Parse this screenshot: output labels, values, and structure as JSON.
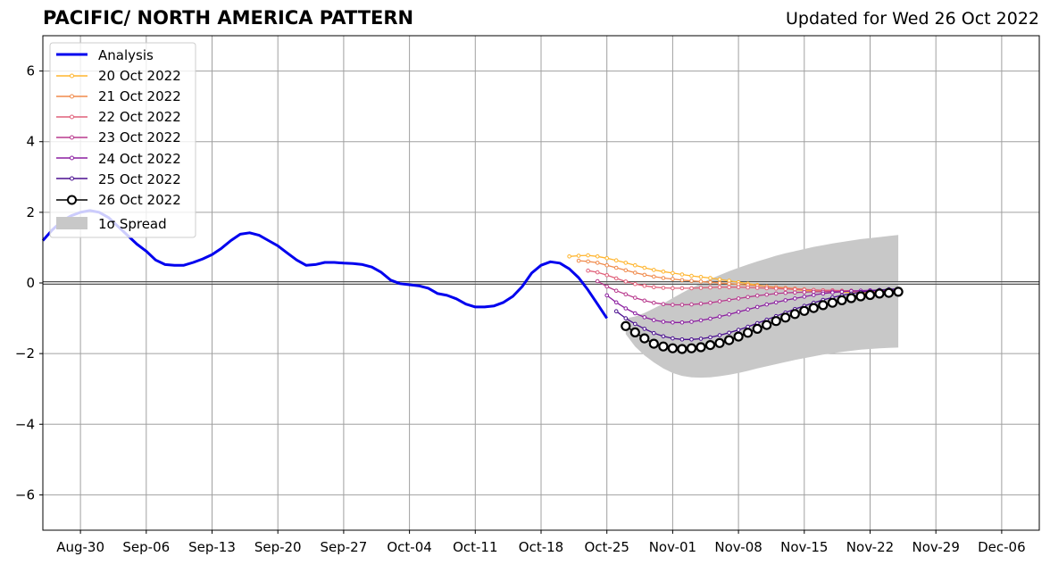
{
  "header": {
    "title": "PACIFIC/ NORTH AMERICA PATTERN",
    "updated": "Updated for Wed 26 Oct 2022"
  },
  "chart_data": {
    "type": "line",
    "title": "PACIFIC/ NORTH AMERICA PATTERN",
    "xlabel": "",
    "ylabel": "",
    "ylim": [
      -7,
      7
    ],
    "yticks": [
      -6,
      -4,
      -2,
      0,
      2,
      4,
      6
    ],
    "ytick_labels": [
      "−6",
      "−4",
      "−2",
      "0",
      "2",
      "4",
      "6"
    ],
    "xlim": [
      "2022-08-26",
      "2022-12-10"
    ],
    "xticks": [
      "2022-08-30",
      "2022-09-06",
      "2022-09-13",
      "2022-09-20",
      "2022-09-27",
      "2022-10-04",
      "2022-10-11",
      "2022-10-18",
      "2022-10-25",
      "2022-11-01",
      "2022-11-08",
      "2022-11-15",
      "2022-11-22",
      "2022-11-29",
      "2022-12-06"
    ],
    "xtick_labels": [
      "Aug-30",
      "Sep-06",
      "Sep-13",
      "Sep-20",
      "Sep-27",
      "Oct-04",
      "Oct-11",
      "Oct-18",
      "Oct-25",
      "Nov-01",
      "Nov-08",
      "Nov-15",
      "Nov-22",
      "Nov-29",
      "Dec-06"
    ],
    "grid": true,
    "legend_position": "top-left",
    "legend_labels": {
      "analysis": "Analysis",
      "f20": "20 Oct 2022",
      "f21": "21 Oct 2022",
      "f22": "22 Oct 2022",
      "f23": "23 Oct 2022",
      "f24": "24 Oct 2022",
      "f25": "25 Oct 2022",
      "f26": "26 Oct 2022",
      "spread": "1σ Spread"
    },
    "analysis": {
      "name": "Analysis",
      "color": "#0000ee",
      "start": "2022-08-26",
      "values": [
        1.2,
        1.5,
        1.75,
        1.9,
        2.0,
        2.05,
        2.0,
        1.85,
        1.6,
        1.35,
        1.1,
        0.9,
        0.65,
        0.52,
        0.5,
        0.5,
        0.58,
        0.68,
        0.8,
        0.98,
        1.2,
        1.38,
        1.42,
        1.35,
        1.2,
        1.05,
        0.85,
        0.65,
        0.5,
        0.52,
        0.58,
        0.58,
        0.56,
        0.55,
        0.52,
        0.45,
        0.3,
        0.08,
        -0.02,
        -0.05,
        -0.08,
        -0.15,
        -0.3,
        -0.35,
        -0.45,
        -0.6,
        -0.68,
        -0.68,
        -0.65,
        -0.55,
        -0.38,
        -0.1,
        0.28,
        0.5,
        0.6,
        0.56,
        0.4,
        0.15,
        -0.2,
        -0.6,
        -1.0
      ]
    },
    "forecasts": [
      {
        "name": "20 Oct 2022",
        "color": "#ffb52e",
        "start": "2022-10-21",
        "values": [
          0.75,
          0.77,
          0.78,
          0.75,
          0.7,
          0.64,
          0.57,
          0.5,
          0.43,
          0.37,
          0.32,
          0.28,
          0.24,
          0.2,
          0.17,
          0.14,
          0.1,
          0.06,
          0.02,
          -0.02,
          -0.06,
          -0.1,
          -0.13,
          -0.16,
          -0.19,
          -0.21,
          -0.23,
          -0.24,
          -0.25,
          -0.26,
          -0.27,
          -0.28,
          -0.28,
          -0.29,
          -0.3,
          -0.3
        ]
      },
      {
        "name": "21 Oct 2022",
        "color": "#f08a4b",
        "start": "2022-10-22",
        "values": [
          0.63,
          0.61,
          0.57,
          0.5,
          0.43,
          0.36,
          0.29,
          0.23,
          0.18,
          0.14,
          0.11,
          0.08,
          0.06,
          0.04,
          0.02,
          0.0,
          -0.02,
          -0.04,
          -0.06,
          -0.08,
          -0.1,
          -0.12,
          -0.14,
          -0.16,
          -0.18,
          -0.2,
          -0.21,
          -0.22,
          -0.23,
          -0.24,
          -0.24,
          -0.25,
          -0.25,
          -0.25,
          -0.25
        ]
      },
      {
        "name": "22 Oct 2022",
        "color": "#e0607a",
        "start": "2022-10-23",
        "values": [
          0.35,
          0.3,
          0.22,
          0.13,
          0.04,
          -0.03,
          -0.08,
          -0.12,
          -0.14,
          -0.15,
          -0.15,
          -0.15,
          -0.14,
          -0.13,
          -0.12,
          -0.12,
          -0.12,
          -0.13,
          -0.14,
          -0.15,
          -0.16,
          -0.17,
          -0.18,
          -0.19,
          -0.2,
          -0.21,
          -0.21,
          -0.22,
          -0.22,
          -0.23,
          -0.23,
          -0.23,
          -0.23,
          -0.23
        ]
      },
      {
        "name": "23 Oct 2022",
        "color": "#b83a8e",
        "start": "2022-10-24",
        "values": [
          0.05,
          -0.1,
          -0.22,
          -0.32,
          -0.42,
          -0.5,
          -0.56,
          -0.6,
          -0.62,
          -0.62,
          -0.61,
          -0.59,
          -0.56,
          -0.52,
          -0.48,
          -0.44,
          -0.4,
          -0.36,
          -0.33,
          -0.3,
          -0.28,
          -0.27,
          -0.26,
          -0.25,
          -0.25,
          -0.24,
          -0.24,
          -0.23,
          -0.23,
          -0.22,
          -0.22,
          -0.21,
          -0.21
        ]
      },
      {
        "name": "24 Oct 2022",
        "color": "#8b1fa0",
        "start": "2022-10-25",
        "values": [
          -0.35,
          -0.55,
          -0.72,
          -0.86,
          -0.97,
          -1.05,
          -1.1,
          -1.12,
          -1.12,
          -1.1,
          -1.06,
          -1.01,
          -0.95,
          -0.89,
          -0.82,
          -0.75,
          -0.68,
          -0.61,
          -0.55,
          -0.49,
          -0.44,
          -0.39,
          -0.34,
          -0.3,
          -0.27,
          -0.25,
          -0.23,
          -0.22,
          -0.21,
          -0.2,
          -0.2,
          -0.19
        ]
      },
      {
        "name": "25 Oct 2022",
        "color": "#4a0f8f",
        "start": "2022-10-26",
        "values": [
          -0.8,
          -1.0,
          -1.16,
          -1.3,
          -1.42,
          -1.51,
          -1.57,
          -1.6,
          -1.6,
          -1.58,
          -1.54,
          -1.48,
          -1.41,
          -1.33,
          -1.24,
          -1.14,
          -1.04,
          -0.94,
          -0.84,
          -0.74,
          -0.65,
          -0.56,
          -0.48,
          -0.41,
          -0.35,
          -0.3,
          -0.26,
          -0.23,
          -0.2,
          -0.18,
          -0.17
        ]
      },
      {
        "name": "26 Oct 2022",
        "color": "#000000",
        "start": "2022-10-27",
        "values": [
          -1.22,
          -1.4,
          -1.57,
          -1.72,
          -1.8,
          -1.85,
          -1.87,
          -1.85,
          -1.82,
          -1.76,
          -1.7,
          -1.62,
          -1.52,
          -1.41,
          -1.3,
          -1.19,
          -1.08,
          -0.98,
          -0.88,
          -0.79,
          -0.71,
          -0.63,
          -0.56,
          -0.49,
          -0.43,
          -0.38,
          -0.34,
          -0.3,
          -0.28,
          -0.25
        ]
      }
    ],
    "spread": {
      "name": "1σ Spread",
      "color": "#c8c8c8",
      "start": "2022-10-27",
      "upper": [
        -1.0,
        -0.95,
        -0.85,
        -0.72,
        -0.58,
        -0.43,
        -0.28,
        -0.14,
        -0.01,
        0.11,
        0.22,
        0.33,
        0.43,
        0.52,
        0.61,
        0.69,
        0.77,
        0.84,
        0.9,
        0.96,
        1.02,
        1.07,
        1.12,
        1.16,
        1.2,
        1.24,
        1.27,
        1.3,
        1.33,
        1.36
      ],
      "lower": [
        -1.45,
        -1.8,
        -2.05,
        -2.25,
        -2.42,
        -2.55,
        -2.63,
        -2.67,
        -2.68,
        -2.67,
        -2.64,
        -2.6,
        -2.55,
        -2.49,
        -2.42,
        -2.36,
        -2.3,
        -2.24,
        -2.18,
        -2.13,
        -2.08,
        -2.03,
        -1.99,
        -1.95,
        -1.92,
        -1.89,
        -1.87,
        -1.85,
        -1.84,
        -1.83
      ]
    }
  }
}
